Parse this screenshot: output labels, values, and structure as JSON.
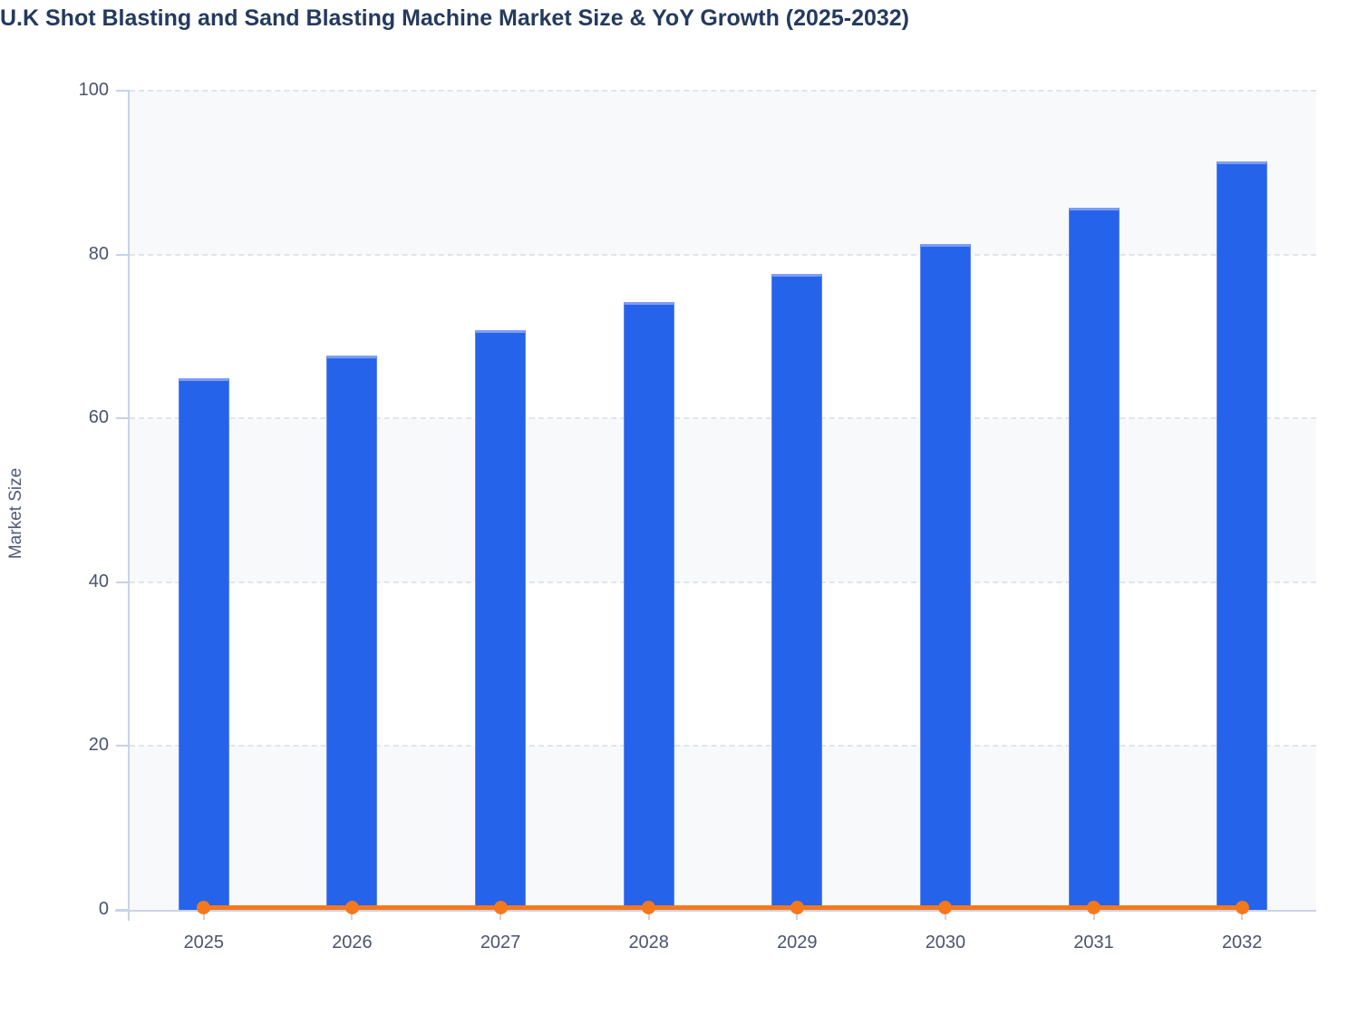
{
  "page": {
    "title": "U.K Shot Blasting and Sand Blasting Machine Market Size & YoY Growth (2025-2032)"
  },
  "chart_data": {
    "type": "bar",
    "title": "U.K Shot Blasting and Sand Blasting Machine Market Size & YoY Growth (2025-2032)",
    "xlabel": "",
    "ylabel": "Market Size",
    "categories": [
      "2025",
      "2026",
      "2027",
      "2028",
      "2029",
      "2030",
      "2031",
      "2032"
    ],
    "series": [
      {
        "name": "Market Size",
        "type": "bar",
        "color": "#2563eb",
        "values": [
          64.9,
          67.7,
          70.8,
          74.2,
          77.6,
          81.3,
          85.7,
          91.4
        ]
      },
      {
        "name": "YoY Growth",
        "type": "line",
        "color": "#f5781d",
        "values": [
          0,
          0,
          0,
          0,
          0,
          0,
          0,
          0
        ]
      }
    ],
    "ylim": [
      0,
      100
    ],
    "yticks": [
      0,
      20,
      40,
      60,
      80,
      100
    ],
    "grid": "horizontal-dashed",
    "split_area": "alternating-bands",
    "legend_position": "none"
  },
  "colors": {
    "title_text": "#243a5e",
    "axis_text": "#4a546c",
    "bar_fill": "#2563eb",
    "line_color": "#f5781d",
    "band_fill": "#f8f9fb",
    "gridline": "#e2e4eb",
    "axis_line": "#c8d2ec"
  }
}
